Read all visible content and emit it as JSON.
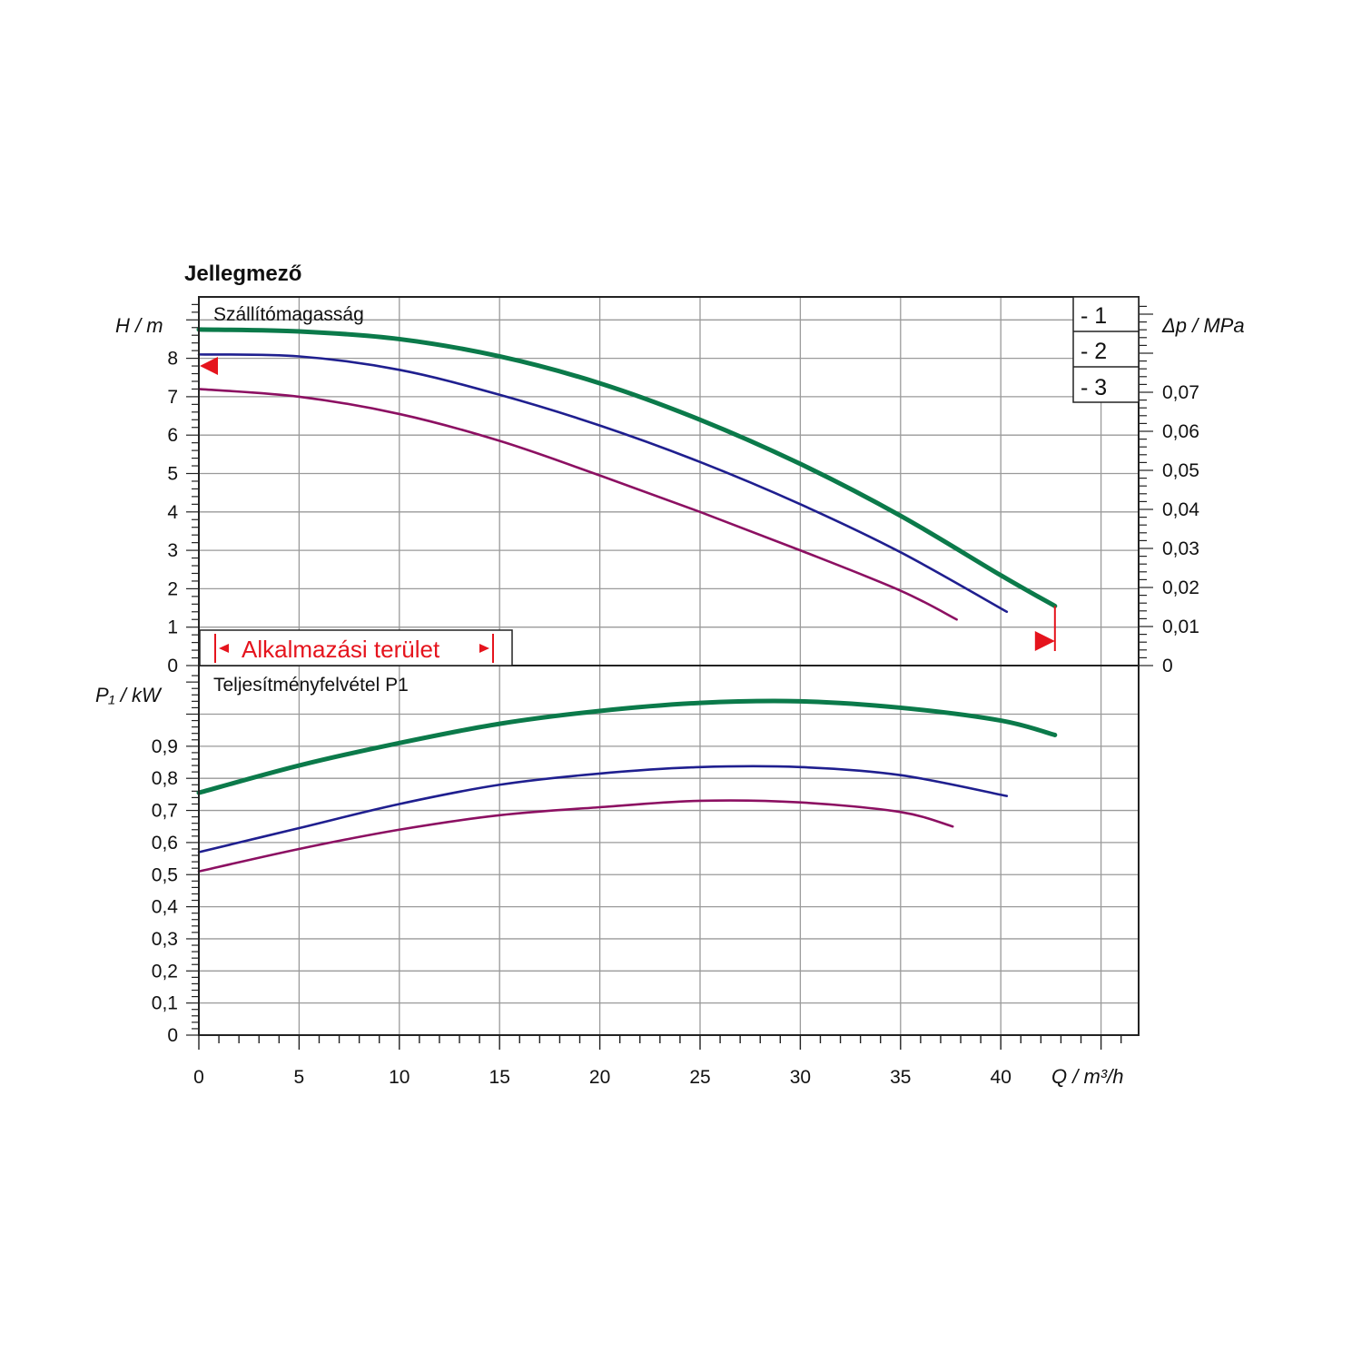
{
  "chart_data": {
    "type": "line",
    "title": "Jellegmező",
    "xlabel": "Q / m³/h",
    "x_ticks": [
      "0",
      "5",
      "10",
      "15",
      "20",
      "25",
      "30",
      "35",
      "40"
    ],
    "xlim": [
      0,
      47
    ],
    "grid": true,
    "legend_position": "top-right",
    "legend": [
      {
        "label": "- 1",
        "color": "#0b7a4a"
      },
      {
        "label": "- 2",
        "color": "#1f1f8f"
      },
      {
        "label": "- 3",
        "color": "#8c1062"
      }
    ],
    "head_panel": {
      "title": "Szállítómagasság",
      "ylabel": "H / m",
      "ylim": [
        0,
        9.5
      ],
      "y_ticks": [
        "0",
        "1",
        "2",
        "3",
        "4",
        "5",
        "6",
        "7",
        "8"
      ],
      "right_ylabel": "Δp / MPa",
      "right_y_ticks": [
        "0",
        "0,01",
        "0,02",
        "0,03",
        "0,04",
        "0,05",
        "0,06",
        "0,07"
      ],
      "series": [
        {
          "legend": "- 1",
          "color": "#0b7a4a",
          "x": [
            0,
            5,
            10,
            15,
            20,
            25,
            30,
            35,
            40,
            42.7
          ],
          "y": [
            8.75,
            8.7,
            8.5,
            8.05,
            7.35,
            6.4,
            5.25,
            3.9,
            2.35,
            1.55
          ]
        },
        {
          "legend": "- 2",
          "color": "#1f1f8f",
          "x": [
            0,
            5,
            10,
            15,
            20,
            25,
            30,
            35,
            40.3
          ],
          "y": [
            8.1,
            8.05,
            7.7,
            7.05,
            6.25,
            5.3,
            4.2,
            2.95,
            1.4
          ]
        },
        {
          "legend": "- 3",
          "color": "#8c1062",
          "x": [
            0,
            5,
            10,
            15,
            20,
            25,
            30,
            35,
            37.8
          ],
          "y": [
            7.2,
            7.0,
            6.55,
            5.85,
            4.95,
            4.0,
            3.0,
            1.95,
            1.2
          ]
        }
      ],
      "application_range": {
        "label": "Alkalmazási terület",
        "x_min": 0.0,
        "x_max": 42.7,
        "h_marker": 7.8
      }
    },
    "power_panel": {
      "title": "Teljesítményfelvétel P1",
      "ylabel": "P₁ / kW",
      "ylim": [
        0,
        1.15
      ],
      "y_ticks": [
        "0",
        "0,1",
        "0,2",
        "0,3",
        "0,4",
        "0,5",
        "0,6",
        "0,7",
        "0,8",
        "0,9"
      ],
      "series": [
        {
          "legend": "- 1",
          "color": "#0b7a4a",
          "x": [
            0,
            5,
            10,
            15,
            20,
            25,
            30,
            35,
            40,
            42.7
          ],
          "y": [
            0.755,
            0.84,
            0.91,
            0.97,
            1.01,
            1.035,
            1.04,
            1.02,
            0.98,
            0.935
          ]
        },
        {
          "legend": "- 2",
          "color": "#1f1f8f",
          "x": [
            0,
            5,
            10,
            15,
            20,
            25,
            30,
            35,
            40.3
          ],
          "y": [
            0.57,
            0.645,
            0.72,
            0.78,
            0.815,
            0.835,
            0.835,
            0.81,
            0.745
          ]
        },
        {
          "legend": "- 3",
          "color": "#8c1062",
          "x": [
            0,
            5,
            10,
            15,
            20,
            25,
            30,
            35,
            37.6
          ],
          "y": [
            0.51,
            0.58,
            0.64,
            0.685,
            0.71,
            0.73,
            0.725,
            0.695,
            0.65
          ]
        }
      ]
    }
  }
}
